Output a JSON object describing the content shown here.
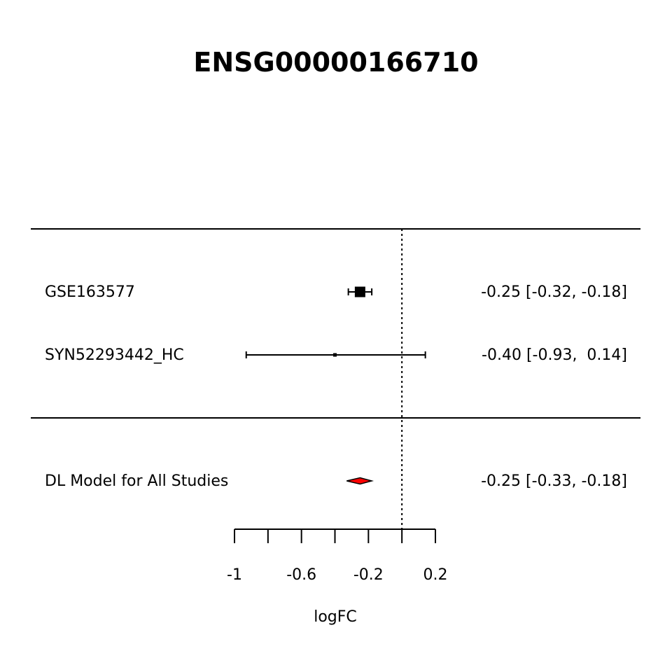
{
  "chart_data": {
    "type": "forest",
    "title": "ENSG00000166710",
    "xlabel": "logFC",
    "xlim": [
      -1,
      0.2
    ],
    "ticks": [
      -1,
      -0.8,
      -0.6,
      -0.4,
      -0.2,
      0,
      0.2
    ],
    "tick_labels": [
      "-1",
      "",
      "-0.6",
      "",
      "-0.2",
      "",
      "0.2"
    ],
    "reference_line": 0,
    "studies": [
      {
        "label": "GSE163577",
        "estimate": -0.25,
        "ci_low": -0.32,
        "ci_high": -0.18,
        "text": "-0.25 [-0.32, -0.18]",
        "weight": "large"
      },
      {
        "label": "SYN52293442_HC",
        "estimate": -0.4,
        "ci_low": -0.93,
        "ci_high": 0.14,
        "text": "-0.40 [-0.93,  0.14]",
        "weight": "small"
      }
    ],
    "summary": {
      "label": "DL Model for All Studies",
      "estimate": -0.25,
      "ci_low": -0.33,
      "ci_high": -0.18,
      "text": "-0.25 [-0.33, -0.18]",
      "color": "#ff0000"
    }
  }
}
